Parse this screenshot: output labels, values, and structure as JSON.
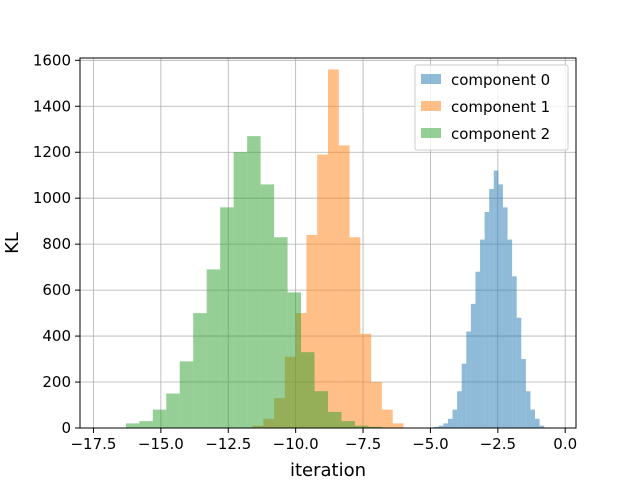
{
  "chart_data": {
    "type": "histogram",
    "xlabel": "iteration",
    "ylabel": "KL",
    "xlim": [
      -18.0,
      0.4
    ],
    "ylim": [
      0,
      1610
    ],
    "xticks": [
      -17.5,
      -15.0,
      -12.5,
      -10.0,
      -7.5,
      -5.0,
      -2.5,
      0.0
    ],
    "xtick_labels": [
      "−17.5",
      "−15.0",
      "−12.5",
      "−10.0",
      "−7.5",
      "−5.0",
      "−2.5",
      "0.0"
    ],
    "yticks": [
      0,
      200,
      400,
      600,
      800,
      1000,
      1200,
      1400,
      1600
    ],
    "ytick_labels": [
      "0",
      "200",
      "400",
      "600",
      "800",
      "1000",
      "1200",
      "1400",
      "1600"
    ],
    "grid": true,
    "legend_position": "top-right",
    "alpha": 0.5,
    "series": [
      {
        "name": "component 0",
        "color": "#1f77b4",
        "bin_width": 0.17,
        "bin_starts": [
          -4.86,
          -4.69,
          -4.52,
          -4.35,
          -4.18,
          -4.01,
          -3.84,
          -3.67,
          -3.5,
          -3.33,
          -3.16,
          -2.99,
          -2.82,
          -2.65,
          -2.48,
          -2.31,
          -2.14,
          -1.97,
          -1.8,
          -1.63,
          -1.46,
          -1.29,
          -1.12,
          -0.95
        ],
        "counts": [
          5,
          10,
          20,
          40,
          80,
          160,
          280,
          420,
          540,
          680,
          820,
          940,
          1040,
          1120,
          1060,
          960,
          820,
          660,
          480,
          300,
          160,
          80,
          40,
          10
        ]
      },
      {
        "name": "component 1",
        "color": "#ff7f0e",
        "bin_width": 0.4,
        "bin_starts": [
          -11.6,
          -11.2,
          -10.8,
          -10.4,
          -10.0,
          -9.6,
          -9.2,
          -8.8,
          -8.4,
          -8.0,
          -7.6,
          -7.2,
          -6.8,
          -6.4
        ],
        "counts": [
          10,
          40,
          130,
          310,
          500,
          840,
          1190,
          1560,
          1230,
          830,
          410,
          200,
          80,
          20
        ]
      },
      {
        "name": "component 2",
        "color": "#2ca02c",
        "bin_width": 0.5,
        "bin_starts": [
          -16.3,
          -15.8,
          -15.3,
          -14.8,
          -14.3,
          -13.8,
          -13.3,
          -12.8,
          -12.3,
          -11.8,
          -11.3,
          -10.8,
          -10.3,
          -9.8,
          -9.3,
          -8.8,
          -8.3,
          -7.8,
          -7.3
        ],
        "counts": [
          20,
          30,
          80,
          150,
          290,
          500,
          690,
          960,
          1200,
          1270,
          1060,
          830,
          590,
          330,
          160,
          70,
          30,
          10,
          5
        ]
      }
    ]
  }
}
